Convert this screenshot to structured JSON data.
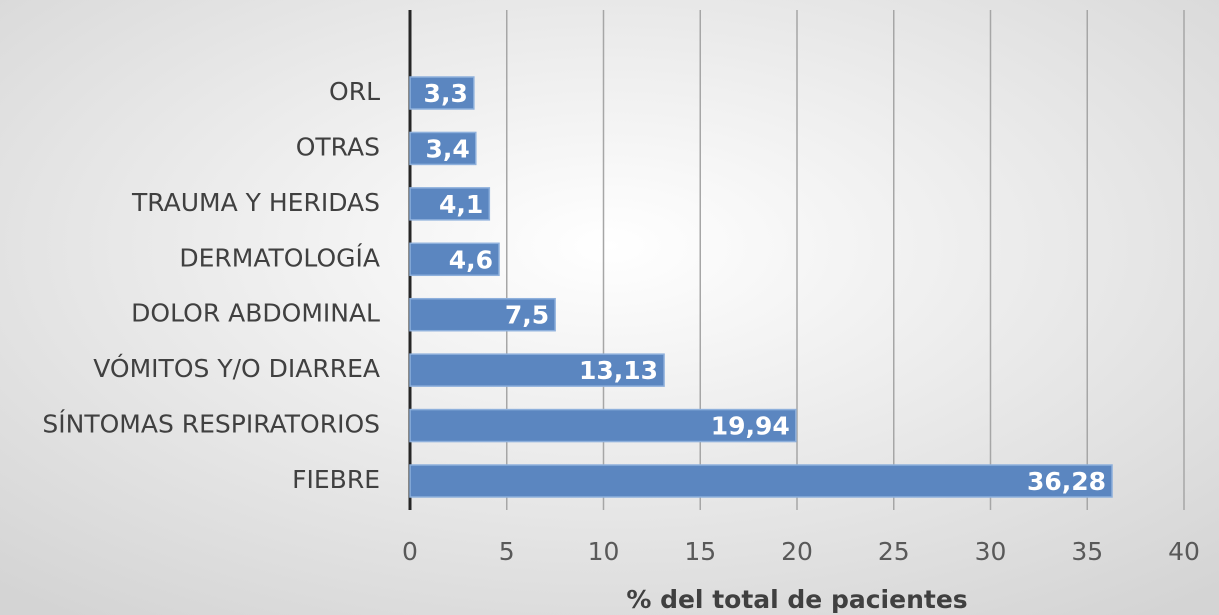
{
  "chart_data": {
    "type": "barh",
    "xlabel": "% del total de pacientes",
    "categories": [
      "ORL",
      "OTRAS",
      "TRAUMA Y HERIDAS",
      "DERMATOLOGÍA",
      "DOLOR ABDOMINAL",
      "VÓMITOS Y/O DIARREA",
      "SÍNTOMAS RESPIRATORIOS",
      "FIEBRE"
    ],
    "values": [
      3.3,
      3.4,
      4.1,
      4.6,
      7.5,
      13.13,
      19.94,
      36.28
    ],
    "value_labels": [
      "3,3",
      "3,4",
      "4,1",
      "4,6",
      "7,5",
      "13,13",
      "19,94",
      "36,28"
    ],
    "color": "#5b86c0",
    "xlim": [
      0,
      40
    ],
    "xticks": [
      0,
      5,
      10,
      15,
      20,
      25,
      30,
      35,
      40
    ],
    "grid": true
  }
}
